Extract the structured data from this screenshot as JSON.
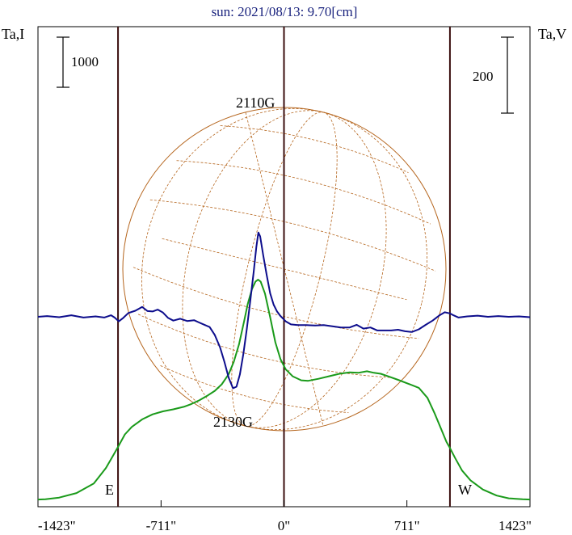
{
  "chart_data": {
    "type": "line",
    "title": "sun: 2021/08/13: 9.70[cm]",
    "left_axis_label": "Ta,I",
    "right_axis_label": "Ta,V",
    "left_scale_bar": "1000",
    "right_scale_bar": "200",
    "x_ticks": [
      "-1423\"",
      "-711\"",
      "0\"",
      "711\"",
      "1423\""
    ],
    "x_tick_values": [
      -1423,
      -711,
      0,
      711,
      1423
    ],
    "xlim": [
      -1423,
      1423
    ],
    "limb_labels": {
      "east": "E",
      "west": "W"
    },
    "limb_positions": [
      -960,
      0,
      960
    ],
    "annotations": [
      {
        "text": "2110G",
        "x": -140
      },
      {
        "text": "2130G",
        "x": -250
      }
    ],
    "series": [
      {
        "color": "#1a9a1a",
        "points": [
          [
            -1423,
            30
          ],
          [
            -1380,
            35
          ],
          [
            -1300,
            70
          ],
          [
            -1200,
            160
          ],
          [
            -1100,
            350
          ],
          [
            -1030,
            660
          ],
          [
            -990,
            900
          ],
          [
            -960,
            1080
          ],
          [
            -920,
            1330
          ],
          [
            -880,
            1480
          ],
          [
            -820,
            1630
          ],
          [
            -760,
            1730
          ],
          [
            -700,
            1790
          ],
          [
            -640,
            1830
          ],
          [
            -580,
            1880
          ],
          [
            -540,
            1930
          ],
          [
            -490,
            2010
          ],
          [
            -440,
            2110
          ],
          [
            -400,
            2200
          ],
          [
            -360,
            2330
          ],
          [
            -320,
            2530
          ],
          [
            -290,
            2780
          ],
          [
            -260,
            3130
          ],
          [
            -230,
            3600
          ],
          [
            -210,
            3930
          ],
          [
            -185,
            4230
          ],
          [
            -165,
            4380
          ],
          [
            -150,
            4420
          ],
          [
            -135,
            4380
          ],
          [
            -110,
            4140
          ],
          [
            -80,
            3670
          ],
          [
            -50,
            3170
          ],
          [
            -20,
            2830
          ],
          [
            10,
            2630
          ],
          [
            50,
            2490
          ],
          [
            100,
            2410
          ],
          [
            140,
            2400
          ],
          [
            200,
            2440
          ],
          [
            260,
            2490
          ],
          [
            320,
            2540
          ],
          [
            380,
            2570
          ],
          [
            430,
            2560
          ],
          [
            480,
            2590
          ],
          [
            520,
            2560
          ],
          [
            560,
            2540
          ],
          [
            610,
            2480
          ],
          [
            660,
            2420
          ],
          [
            720,
            2340
          ],
          [
            780,
            2260
          ],
          [
            830,
            2060
          ],
          [
            870,
            1760
          ],
          [
            910,
            1430
          ],
          [
            940,
            1180
          ],
          [
            960,
            1060
          ],
          [
            990,
            860
          ],
          [
            1030,
            610
          ],
          [
            1080,
            410
          ],
          [
            1150,
            230
          ],
          [
            1230,
            110
          ],
          [
            1300,
            55
          ],
          [
            1380,
            35
          ],
          [
            1423,
            30
          ]
        ]
      },
      {
        "color": "#0d0d8c",
        "points": [
          [
            -1423,
            0
          ],
          [
            -1370,
            2
          ],
          [
            -1300,
            -1
          ],
          [
            -1230,
            4
          ],
          [
            -1160,
            -2
          ],
          [
            -1090,
            1
          ],
          [
            -1040,
            -2
          ],
          [
            -1000,
            4
          ],
          [
            -980,
            -2
          ],
          [
            -955,
            -12
          ],
          [
            -930,
            -3
          ],
          [
            -900,
            10
          ],
          [
            -860,
            16
          ],
          [
            -820,
            26
          ],
          [
            -790,
            15
          ],
          [
            -760,
            14
          ],
          [
            -730,
            19
          ],
          [
            -700,
            11
          ],
          [
            -670,
            -3
          ],
          [
            -640,
            -10
          ],
          [
            -600,
            -5
          ],
          [
            -560,
            -11
          ],
          [
            -520,
            -9
          ],
          [
            -490,
            -15
          ],
          [
            -460,
            -21
          ],
          [
            -430,
            -27
          ],
          [
            -400,
            -48
          ],
          [
            -370,
            -80
          ],
          [
            -345,
            -118
          ],
          [
            -320,
            -160
          ],
          [
            -295,
            -188
          ],
          [
            -275,
            -184
          ],
          [
            -255,
            -152
          ],
          [
            -235,
            -98
          ],
          [
            -215,
            -32
          ],
          [
            -195,
            42
          ],
          [
            -175,
            120
          ],
          [
            -160,
            184
          ],
          [
            -148,
            222
          ],
          [
            -138,
            212
          ],
          [
            -120,
            162
          ],
          [
            -100,
            110
          ],
          [
            -80,
            62
          ],
          [
            -60,
            32
          ],
          [
            -40,
            14
          ],
          [
            -20,
            2
          ],
          [
            10,
            -12
          ],
          [
            40,
            -20
          ],
          [
            80,
            -22
          ],
          [
            130,
            -22
          ],
          [
            180,
            -23
          ],
          [
            230,
            -22
          ],
          [
            280,
            -25
          ],
          [
            330,
            -28
          ],
          [
            380,
            -28
          ],
          [
            420,
            -21
          ],
          [
            460,
            -31
          ],
          [
            500,
            -28
          ],
          [
            540,
            -36
          ],
          [
            580,
            -36
          ],
          [
            620,
            -36
          ],
          [
            660,
            -34
          ],
          [
            700,
            -38
          ],
          [
            740,
            -40
          ],
          [
            780,
            -33
          ],
          [
            820,
            -21
          ],
          [
            860,
            -10
          ],
          [
            900,
            4
          ],
          [
            930,
            12
          ],
          [
            960,
            9
          ],
          [
            980,
            4
          ],
          [
            1010,
            -2
          ],
          [
            1060,
            1
          ],
          [
            1120,
            3
          ],
          [
            1180,
            0
          ],
          [
            1240,
            2
          ],
          [
            1300,
            0
          ],
          [
            1360,
            1
          ],
          [
            1423,
            -1
          ]
        ]
      }
    ]
  }
}
